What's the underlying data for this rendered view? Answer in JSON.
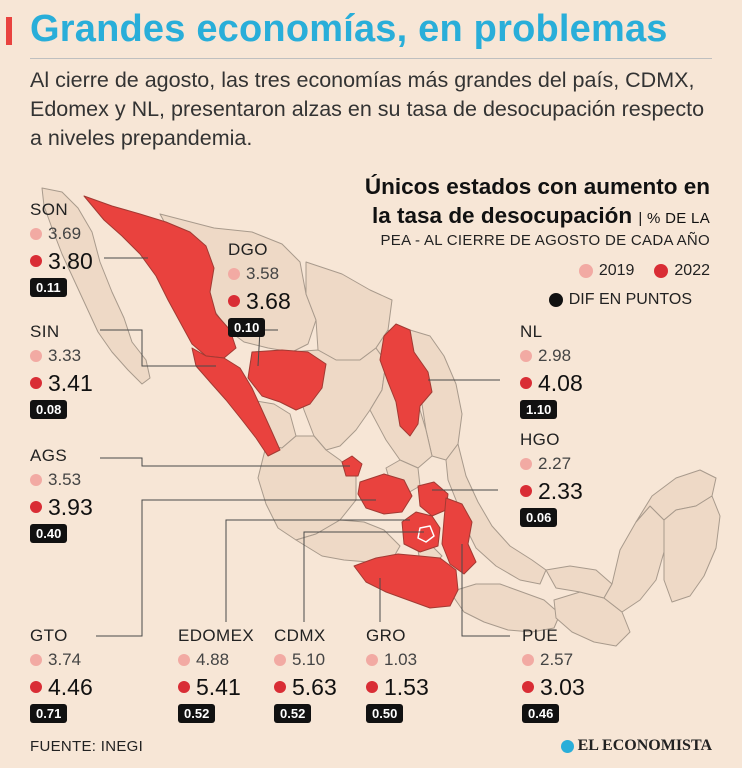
{
  "title": "Grandes economías, en problemas",
  "intro": "Al cierre de agosto, las tres economías más grandes del país, CDMX, Edomex y NL, presentaron alzas en su tasa de desocupación respecto a niveles prepandemia.",
  "chart_title_line1": "Únicos estados con aumento en",
  "chart_title_line2": "la tasa de desocupación",
  "chart_subtitle_a": "| % DE LA",
  "chart_subtitle_b": "PEA - AL CIERRE DE AGOSTO DE CADA AÑO",
  "legend": {
    "y2019": "2019",
    "y2022": "2022",
    "diff": "DIF EN PUNTOS"
  },
  "colors": {
    "accent": "#29aed9",
    "highlight": "#e9423e",
    "land": "#eed9c6",
    "background": "#f7e6d6",
    "dot2019": "#f2aaa3",
    "dot2022": "#d92d35"
  },
  "states": [
    {
      "name": "SON",
      "v2019": "3.69",
      "v2022": "3.80",
      "diff": "0.11"
    },
    {
      "name": "DGO",
      "v2019": "3.58",
      "v2022": "3.68",
      "diff": "0.10"
    },
    {
      "name": "SIN",
      "v2019": "3.33",
      "v2022": "3.41",
      "diff": "0.08"
    },
    {
      "name": "NL",
      "v2019": "2.98",
      "v2022": "4.08",
      "diff": "1.10"
    },
    {
      "name": "HGO",
      "v2019": "2.27",
      "v2022": "2.33",
      "diff": "0.06"
    },
    {
      "name": "AGS",
      "v2019": "3.53",
      "v2022": "3.93",
      "diff": "0.40"
    },
    {
      "name": "GTO",
      "v2019": "3.74",
      "v2022": "4.46",
      "diff": "0.71"
    },
    {
      "name": "EDOMEX",
      "v2019": "4.88",
      "v2022": "5.41",
      "diff": "0.52"
    },
    {
      "name": "CDMX",
      "v2019": "5.10",
      "v2022": "5.63",
      "diff": "0.52"
    },
    {
      "name": "GRO",
      "v2019": "1.03",
      "v2022": "1.53",
      "diff": "0.50"
    },
    {
      "name": "PUE",
      "v2019": "2.57",
      "v2022": "3.03",
      "diff": "0.46"
    }
  ],
  "source": "FUENTE: INEGI",
  "brand": "EL ECONOMISTA"
}
